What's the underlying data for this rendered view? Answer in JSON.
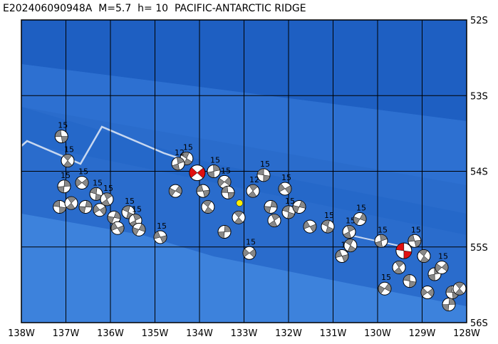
{
  "header": {
    "title": "E202406090948A  M=5.7  h= 10  PACIFIC-ANTARCTIC RIDGE"
  },
  "map": {
    "lon_range": [
      -138,
      -128
    ],
    "lat_range": [
      -52,
      -56
    ],
    "lon_ticks": [
      {
        "value": -138,
        "label": "138W"
      },
      {
        "value": -137,
        "label": "137W"
      },
      {
        "value": -136,
        "label": "136W"
      },
      {
        "value": -135,
        "label": "135W"
      },
      {
        "value": -134,
        "label": "134W"
      },
      {
        "value": -133,
        "label": "133W"
      },
      {
        "value": -132,
        "label": "132W"
      },
      {
        "value": -131,
        "label": "131W"
      },
      {
        "value": -130,
        "label": "130W"
      },
      {
        "value": -129,
        "label": "129W"
      },
      {
        "value": -128,
        "label": "128W"
      }
    ],
    "lat_ticks": [
      {
        "value": -52,
        "label": "52S"
      },
      {
        "value": -53,
        "label": "53S"
      },
      {
        "value": -54,
        "label": "54S"
      },
      {
        "value": -55,
        "label": "55S"
      },
      {
        "value": -56,
        "label": "56S"
      }
    ],
    "epicenter": {
      "lon": -133.1,
      "lat": -54.42
    },
    "main_events": [
      {
        "lon": -134.05,
        "lat": -54.02,
        "color": "#e01010"
      },
      {
        "lon": -129.41,
        "lat": -55.05,
        "color": "#e01010"
      }
    ],
    "events": [
      {
        "lon": -137.1,
        "lat": -53.54,
        "label": "15"
      },
      {
        "lon": -136.96,
        "lat": -53.86,
        "label": "15"
      },
      {
        "lon": -137.04,
        "lat": -54.2,
        "label": "15"
      },
      {
        "lon": -136.64,
        "lat": -54.15,
        "label": "15"
      },
      {
        "lon": -137.14,
        "lat": -54.47
      },
      {
        "lon": -136.88,
        "lat": -54.42
      },
      {
        "lon": -136.56,
        "lat": -54.47
      },
      {
        "lon": -136.24,
        "lat": -54.51
      },
      {
        "lon": -136.32,
        "lat": -54.3,
        "label": "15"
      },
      {
        "lon": -136.08,
        "lat": -54.37,
        "label": "15"
      },
      {
        "lon": -135.92,
        "lat": -54.61
      },
      {
        "lon": -135.84,
        "lat": -54.75
      },
      {
        "lon": -135.6,
        "lat": -54.54,
        "label": "15"
      },
      {
        "lon": -135.44,
        "lat": -54.65,
        "label": "15"
      },
      {
        "lon": -135.36,
        "lat": -54.77
      },
      {
        "lon": -134.88,
        "lat": -54.87,
        "label": "15"
      },
      {
        "lon": -134.29,
        "lat": -53.83,
        "label": "15"
      },
      {
        "lon": -134.48,
        "lat": -53.9,
        "label": "12"
      },
      {
        "lon": -134.54,
        "lat": -54.26
      },
      {
        "lon": -133.92,
        "lat": -54.26
      },
      {
        "lon": -133.81,
        "lat": -54.47
      },
      {
        "lon": -133.68,
        "lat": -54.0,
        "label": "15"
      },
      {
        "lon": -133.44,
        "lat": -54.14,
        "label": "15"
      },
      {
        "lon": -133.36,
        "lat": -54.28
      },
      {
        "lon": -133.12,
        "lat": -54.61
      },
      {
        "lon": -133.44,
        "lat": -54.8
      },
      {
        "lon": -132.88,
        "lat": -55.08,
        "label": "15"
      },
      {
        "lon": -132.56,
        "lat": -54.05,
        "label": "15"
      },
      {
        "lon": -132.8,
        "lat": -54.26,
        "label": "12"
      },
      {
        "lon": -132.4,
        "lat": -54.47
      },
      {
        "lon": -132.08,
        "lat": -54.23,
        "label": "15"
      },
      {
        "lon": -132.0,
        "lat": -54.54,
        "label": "15"
      },
      {
        "lon": -132.32,
        "lat": -54.65
      },
      {
        "lon": -131.76,
        "lat": -54.47
      },
      {
        "lon": -131.52,
        "lat": -54.73
      },
      {
        "lon": -131.12,
        "lat": -54.73,
        "label": "15"
      },
      {
        "lon": -130.64,
        "lat": -54.8,
        "label": "15"
      },
      {
        "lon": -130.4,
        "lat": -54.63,
        "label": "15"
      },
      {
        "lon": -130.8,
        "lat": -55.12,
        "label": "1"
      },
      {
        "lon": -130.61,
        "lat": -54.98
      },
      {
        "lon": -129.92,
        "lat": -54.92,
        "label": "15"
      },
      {
        "lon": -129.84,
        "lat": -55.55,
        "label": "15"
      },
      {
        "lon": -129.17,
        "lat": -54.92,
        "label": "15"
      },
      {
        "lon": -128.96,
        "lat": -55.12
      },
      {
        "lon": -128.72,
        "lat": -55.36
      },
      {
        "lon": -128.56,
        "lat": -55.27,
        "label": "15"
      },
      {
        "lon": -128.32,
        "lat": -55.6
      },
      {
        "lon": -128.16,
        "lat": -55.55
      },
      {
        "lon": -128.4,
        "lat": -55.76
      },
      {
        "lon": -128.88,
        "lat": -55.6
      },
      {
        "lon": -129.28,
        "lat": -55.45
      },
      {
        "lon": -129.52,
        "lat": -55.27
      }
    ]
  }
}
